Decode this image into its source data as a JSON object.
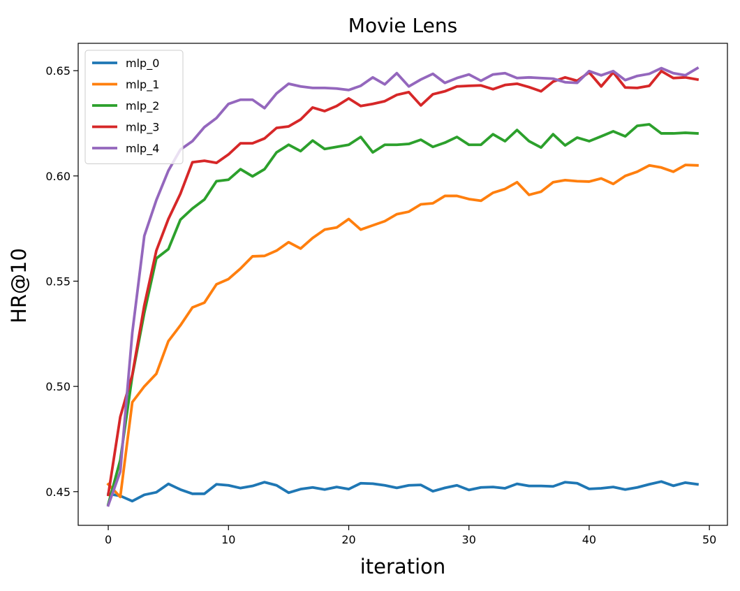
{
  "chart_data": {
    "type": "line",
    "title": "Movie Lens",
    "xlabel": "iteration",
    "ylabel": "HR@10",
    "xlim": [
      -2.5,
      51.5
    ],
    "ylim": [
      0.434,
      0.663
    ],
    "xticks": [
      0,
      10,
      20,
      30,
      40,
      50
    ],
    "yticks": [
      0.45,
      0.5,
      0.55,
      0.6,
      0.65
    ],
    "ytick_labels": [
      "0.45",
      "0.50",
      "0.55",
      "0.60",
      "0.65"
    ],
    "grid": false,
    "legend_position": "upper-left",
    "x": [
      0,
      1,
      2,
      3,
      4,
      5,
      6,
      7,
      8,
      9,
      10,
      11,
      12,
      13,
      14,
      15,
      16,
      17,
      18,
      19,
      20,
      21,
      22,
      23,
      24,
      25,
      26,
      27,
      28,
      29,
      30,
      31,
      32,
      33,
      34,
      35,
      36,
      37,
      38,
      39,
      40,
      41,
      42,
      43,
      44,
      45,
      46,
      47,
      48,
      49
    ],
    "series": [
      {
        "name": "mlp_0",
        "color": "#1f77b4",
        "values": [
          0.449,
          0.448,
          0.4455,
          0.4485,
          0.4497,
          0.4537,
          0.451,
          0.449,
          0.449,
          0.4535,
          0.453,
          0.4517,
          0.4527,
          0.4545,
          0.453,
          0.4495,
          0.4512,
          0.452,
          0.451,
          0.4522,
          0.4512,
          0.454,
          0.4538,
          0.453,
          0.4518,
          0.453,
          0.4532,
          0.4502,
          0.4518,
          0.453,
          0.4508,
          0.452,
          0.4522,
          0.4516,
          0.4537,
          0.4527,
          0.4527,
          0.4525,
          0.4545,
          0.454,
          0.4513,
          0.4516,
          0.4522,
          0.451,
          0.452,
          0.4535,
          0.4548,
          0.4528,
          0.4543,
          0.4535
        ]
      },
      {
        "name": "mlp_1",
        "color": "#ff7f0e",
        "values": [
          0.4535,
          0.4475,
          0.4925,
          0.5,
          0.506,
          0.5215,
          0.529,
          0.5375,
          0.5398,
          0.5485,
          0.551,
          0.556,
          0.5618,
          0.562,
          0.5645,
          0.5685,
          0.5655,
          0.5705,
          0.5745,
          0.5755,
          0.5795,
          0.5745,
          0.5765,
          0.5785,
          0.5818,
          0.583,
          0.5865,
          0.587,
          0.5905,
          0.5905,
          0.589,
          0.5882,
          0.592,
          0.5938,
          0.597,
          0.591,
          0.5925,
          0.597,
          0.598,
          0.5975,
          0.5973,
          0.5988,
          0.5962,
          0.6,
          0.602,
          0.605,
          0.604,
          0.602,
          0.6052,
          0.605
        ]
      },
      {
        "name": "mlp_2",
        "color": "#2ca02c",
        "values": [
          0.444,
          0.465,
          0.505,
          0.535,
          0.5608,
          0.5652,
          0.5792,
          0.5845,
          0.5888,
          0.5975,
          0.5982,
          0.6032,
          0.5998,
          0.6032,
          0.6112,
          0.6148,
          0.6118,
          0.6168,
          0.6128,
          0.6138,
          0.6148,
          0.6185,
          0.6112,
          0.6148,
          0.6148,
          0.6152,
          0.6172,
          0.6138,
          0.6158,
          0.6185,
          0.6148,
          0.6148,
          0.6198,
          0.6165,
          0.6218,
          0.6165,
          0.6135,
          0.6198,
          0.6145,
          0.6182,
          0.6165,
          0.6188,
          0.6212,
          0.6188,
          0.6238,
          0.6245,
          0.6202,
          0.6202,
          0.6205,
          0.6202
        ]
      },
      {
        "name": "mlp_3",
        "color": "#d62728",
        "values": [
          0.4485,
          0.4855,
          0.5055,
          0.5385,
          0.5645,
          0.5795,
          0.5915,
          0.6065,
          0.6072,
          0.6062,
          0.6102,
          0.6155,
          0.6155,
          0.6178,
          0.6228,
          0.6235,
          0.6268,
          0.6325,
          0.6308,
          0.6332,
          0.6368,
          0.6332,
          0.6342,
          0.6355,
          0.6385,
          0.6398,
          0.6335,
          0.6388,
          0.6402,
          0.6425,
          0.6428,
          0.643,
          0.6412,
          0.6432,
          0.6438,
          0.6422,
          0.6402,
          0.6448,
          0.6468,
          0.6452,
          0.6492,
          0.6425,
          0.6492,
          0.642,
          0.6418,
          0.6428,
          0.6498,
          0.6465,
          0.6468,
          0.6458
        ]
      },
      {
        "name": "mlp_4",
        "color": "#9467bd",
        "values": [
          0.4435,
          0.4595,
          0.5255,
          0.5715,
          0.5885,
          0.6025,
          0.6125,
          0.6165,
          0.6232,
          0.6275,
          0.6342,
          0.6362,
          0.6362,
          0.6322,
          0.6392,
          0.6438,
          0.6425,
          0.6418,
          0.6418,
          0.6415,
          0.6408,
          0.6428,
          0.6468,
          0.6435,
          0.6488,
          0.6425,
          0.6458,
          0.6485,
          0.6442,
          0.6465,
          0.6482,
          0.6452,
          0.6482,
          0.6488,
          0.6465,
          0.6468,
          0.6465,
          0.6462,
          0.6445,
          0.6442,
          0.6498,
          0.6478,
          0.6498,
          0.6455,
          0.6475,
          0.6485,
          0.6512,
          0.6488,
          0.6478,
          0.6512
        ]
      }
    ]
  }
}
